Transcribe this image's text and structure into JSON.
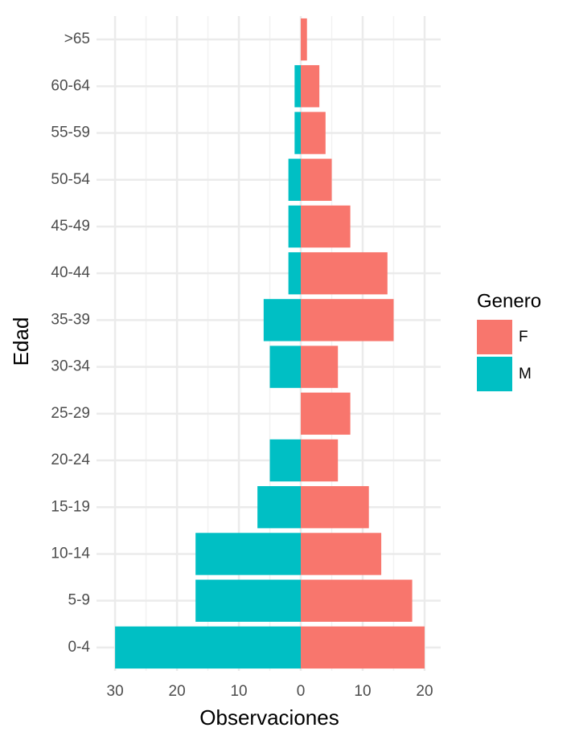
{
  "chart_data": {
    "type": "bar",
    "orientation": "horizontal",
    "stacked": "diverging",
    "x_label": "Observaciones",
    "y_label": "Edad",
    "categories": [
      "0-4",
      "5-9",
      "10-14",
      "15-19",
      "20-24",
      "25-29",
      "30-34",
      "35-39",
      "40-44",
      "45-49",
      "50-54",
      "55-59",
      "60-64",
      ">65"
    ],
    "series": [
      {
        "name": "F",
        "color": "#F8766D",
        "values": [
          20,
          18,
          13,
          11,
          6,
          8,
          6,
          15,
          14,
          8,
          5,
          4,
          3,
          1
        ]
      },
      {
        "name": "M",
        "color": "#00BFC4",
        "values": [
          -30,
          -17,
          -17,
          -7,
          -5,
          0,
          -5,
          -6,
          -2,
          -2,
          -2,
          -1,
          -1,
          0
        ]
      }
    ],
    "xlim": [
      -33,
      22.6
    ],
    "xticks": [
      {
        "value": -30,
        "label": "30"
      },
      {
        "value": -20,
        "label": "20"
      },
      {
        "value": -10,
        "label": "10"
      },
      0,
      10,
      20
    ],
    "minor_xticks": [
      -25,
      -15,
      -5,
      5,
      15
    ],
    "grid": true,
    "legend": {
      "title": "Genero",
      "position": "right"
    }
  }
}
